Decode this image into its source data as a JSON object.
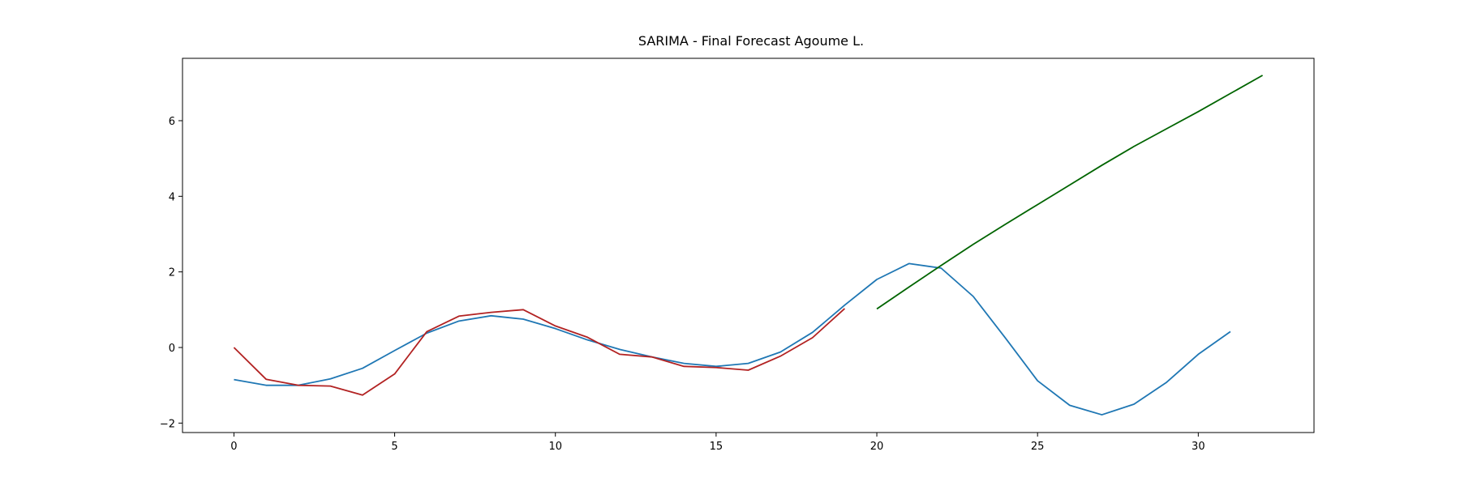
{
  "chart_data": {
    "type": "line",
    "title": "SARIMA - Final Forecast Agoume L.",
    "xlabel": "",
    "ylabel": "",
    "xlim": [
      -1.6,
      33.6
    ],
    "ylim": [
      -2.25,
      7.65
    ],
    "xticks": [
      0,
      5,
      10,
      15,
      20,
      25,
      30
    ],
    "yticks": [
      -2,
      0,
      2,
      4,
      6
    ],
    "grid": false,
    "series": [
      {
        "color": "#1f77b4",
        "x": [
          0,
          1,
          2,
          3,
          4,
          5,
          6,
          7,
          8,
          9,
          10,
          11,
          12,
          13,
          14,
          15,
          16,
          17,
          18,
          19,
          20,
          21,
          22,
          23,
          24,
          25,
          26,
          27,
          28,
          29,
          30,
          31
        ],
        "y": [
          -0.85,
          -1.0,
          -1.0,
          -0.83,
          -0.55,
          -0.08,
          0.38,
          0.7,
          0.84,
          0.75,
          0.5,
          0.2,
          -0.05,
          -0.25,
          -0.42,
          -0.5,
          -0.42,
          -0.12,
          0.4,
          1.12,
          1.8,
          2.22,
          2.1,
          1.35,
          0.25,
          -0.88,
          -1.53,
          -1.78,
          -1.5,
          -0.93,
          -0.18,
          0.42
        ]
      },
      {
        "color": "#b22222",
        "x": [
          0,
          1,
          2,
          3,
          4,
          5,
          6,
          7,
          8,
          9,
          10,
          11,
          12,
          13,
          14,
          15,
          16,
          17,
          18,
          19
        ],
        "y": [
          0.0,
          -0.84,
          -1.0,
          -1.02,
          -1.26,
          -0.7,
          0.42,
          0.83,
          0.93,
          1.0,
          0.57,
          0.27,
          -0.18,
          -0.25,
          -0.5,
          -0.53,
          -0.6,
          -0.23,
          0.26,
          1.03
        ]
      },
      {
        "color": "#006400",
        "x": [
          20,
          21,
          22,
          23,
          24,
          25,
          26,
          27,
          28,
          29,
          30,
          31,
          32
        ],
        "y": [
          1.02,
          1.6,
          2.17,
          2.73,
          3.26,
          3.78,
          4.3,
          4.82,
          5.32,
          5.78,
          6.24,
          6.72,
          7.2
        ]
      }
    ]
  }
}
